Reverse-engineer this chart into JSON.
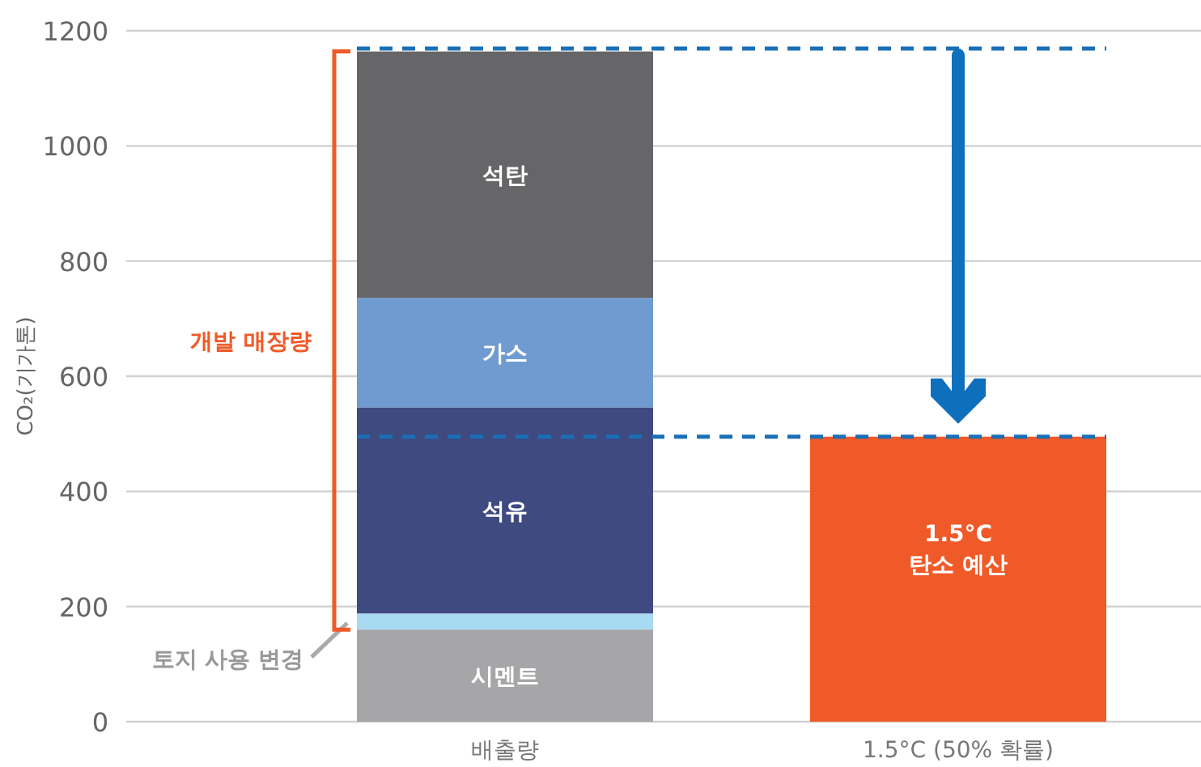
{
  "chart_data": {
    "type": "bar",
    "stacked": true,
    "ylabel": "CO₂(기가톤)",
    "categories": [
      "배출량",
      "1.5°C (50% 확률)"
    ],
    "series": [
      {
        "name": "시멘트",
        "color": "#a6a6a8",
        "values": [
          160,
          null
        ]
      },
      {
        "name": "토지 사용 변경",
        "color": "#a8daf2",
        "values": [
          28,
          null
        ]
      },
      {
        "name": "석유",
        "color": "#3f4a80",
        "values": [
          358,
          null
        ]
      },
      {
        "name": "가스",
        "color": "#6f9bd1",
        "values": [
          190,
          null
        ]
      },
      {
        "name": "석탄",
        "color": "#666668",
        "values": [
          428,
          null
        ]
      },
      {
        "name": "1.5°C\n탄소 예산",
        "color": "#f05a28",
        "values": [
          null,
          495
        ]
      }
    ],
    "ylim": [
      0,
      1200
    ],
    "yticks": [
      0,
      200,
      400,
      600,
      800,
      1000,
      1200
    ],
    "grid": "y",
    "legend": false,
    "ref_lines": [
      {
        "axis": "y",
        "value": 1169,
        "label": null,
        "color": "#1a6fb5",
        "line_style": "dashed"
      },
      {
        "axis": "y",
        "value": 495,
        "label": null,
        "color": "#1a6fb5",
        "line_style": "dashed"
      }
    ],
    "annotations": [
      "개발 매장량"
    ]
  }
}
